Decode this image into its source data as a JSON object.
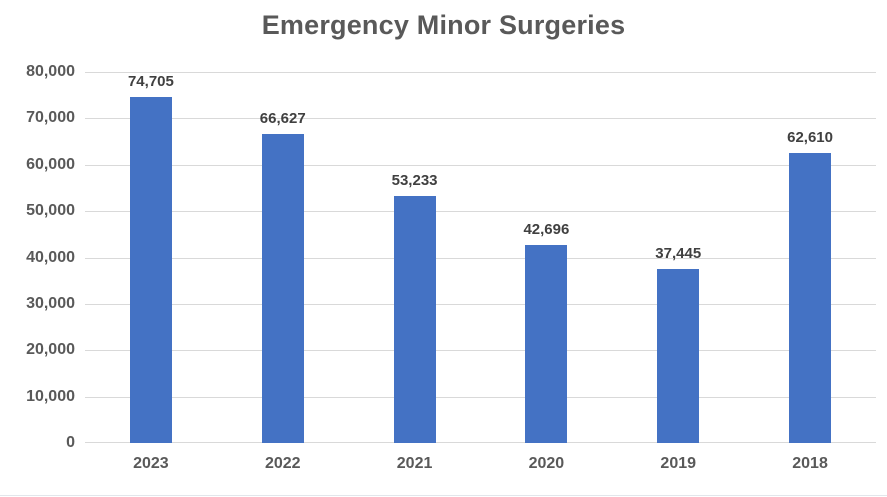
{
  "chart": {
    "title": "Emergency Minor Surgeries",
    "colors": {
      "bar": "#4472C4",
      "gridline": "#D9D9D9",
      "title_text": "#595959",
      "axis_text": "#595959",
      "data_label_text": "#404040",
      "background": "#FFFFFF",
      "bottom_rule": "#E2E6EB"
    }
  },
  "chart_data": {
    "type": "bar",
    "title": "Emergency Minor Surgeries",
    "categories": [
      "2023",
      "2022",
      "2021",
      "2020",
      "2019",
      "2018"
    ],
    "values": [
      74705,
      66627,
      53233,
      42696,
      37445,
      62610
    ],
    "data_labels": [
      "74,705",
      "66,627",
      "53,233",
      "42,696",
      "37,445",
      "62,610"
    ],
    "xlabel": "",
    "ylabel": "",
    "ylim": [
      0,
      80000
    ],
    "ytick_interval": 10000,
    "ytick_labels": [
      "0",
      "10,000",
      "20,000",
      "30,000",
      "40,000",
      "50,000",
      "60,000",
      "70,000",
      "80,000"
    ],
    "grid": true,
    "legend": false,
    "data_labels_shown": true
  }
}
